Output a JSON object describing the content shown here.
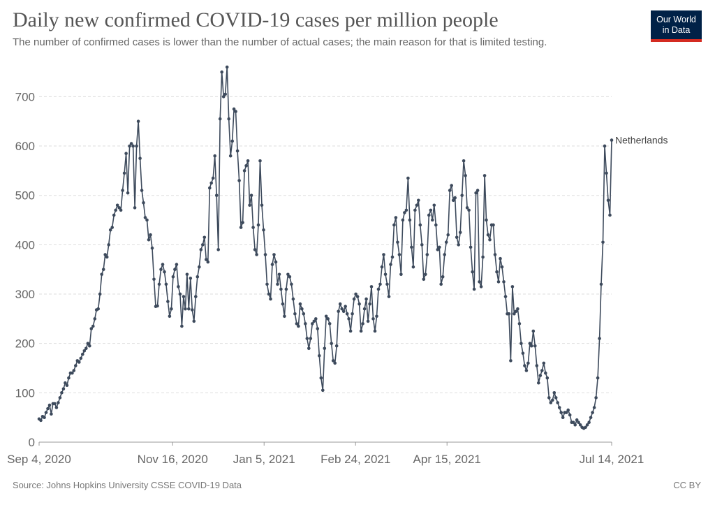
{
  "header": {
    "title": "Daily new confirmed COVID-19 cases per million people",
    "subtitle": "The number of confirmed cases is lower than the number of actual cases; the main reason for that is limited testing."
  },
  "logo": {
    "line1": "Our World",
    "line2": "in Data",
    "bg_color": "#002147",
    "accent_color": "#d42b21"
  },
  "footer": {
    "source": "Source: Johns Hopkins University CSSE COVID-19 Data",
    "license": "CC BY"
  },
  "colors": {
    "series": "#3d4a5c",
    "grid": "#dddddd",
    "axis_text": "#666666"
  },
  "chart_data": {
    "type": "line",
    "title": "Daily new confirmed COVID-19 cases per million people",
    "xlabel": "",
    "ylabel": "",
    "x_range": [
      "2020-09-04",
      "2021-07-14"
    ],
    "ylim": [
      0,
      760
    ],
    "yticks": [
      0,
      100,
      200,
      300,
      400,
      500,
      600,
      700
    ],
    "ytick_labels": [
      "0",
      "100",
      "200",
      "300",
      "400",
      "500",
      "600",
      "700"
    ],
    "xticks": [
      {
        "day": 0,
        "label": "Sep 4, 2020"
      },
      {
        "day": 73,
        "label": "Nov 16, 2020"
      },
      {
        "day": 123,
        "label": "Jan 5, 2021"
      },
      {
        "day": 173,
        "label": "Feb 24, 2021"
      },
      {
        "day": 223,
        "label": "Apr 15, 2021"
      },
      {
        "day": 313,
        "label": "Jul 14, 2021"
      }
    ],
    "grid": "horizontal dashed",
    "series": [
      {
        "name": "Netherlands",
        "start_date": "2020-09-04",
        "label_position": "end",
        "values": [
          47,
          44,
          52,
          50,
          60,
          68,
          75,
          57,
          78,
          78,
          70,
          80,
          90,
          100,
          108,
          120,
          115,
          130,
          140,
          140,
          145,
          155,
          165,
          162,
          170,
          178,
          185,
          190,
          200,
          195,
          230,
          235,
          250,
          268,
          270,
          300,
          340,
          350,
          380,
          375,
          400,
          430,
          435,
          460,
          470,
          480,
          475,
          470,
          510,
          545,
          585,
          505,
          600,
          605,
          600,
          475,
          600,
          650,
          575,
          510,
          485,
          455,
          450,
          410,
          420,
          393,
          330,
          275,
          276,
          320,
          350,
          360,
          345,
          320,
          285,
          255,
          270,
          335,
          350,
          360,
          315,
          300,
          235,
          295,
          270,
          340,
          270,
          332,
          268,
          245,
          295,
          335,
          355,
          390,
          400,
          415,
          370,
          365,
          515,
          525,
          535,
          580,
          500,
          390,
          655,
          750,
          700,
          705,
          760,
          655,
          580,
          610,
          675,
          670,
          590,
          530,
          435,
          445,
          550,
          560,
          570,
          480,
          500,
          435,
          390,
          380,
          440,
          570,
          480,
          430,
          380,
          320,
          300,
          290,
          360,
          380,
          365,
          320,
          340,
          310,
          280,
          255,
          310,
          340,
          335,
          320,
          290,
          260,
          240,
          235,
          280,
          270,
          260,
          240,
          210,
          190,
          210,
          240,
          245,
          250,
          230,
          175,
          130,
          105,
          190,
          255,
          250,
          240,
          200,
          165,
          160,
          195,
          265,
          280,
          270,
          265,
          275,
          260,
          250,
          225,
          260,
          290,
          300,
          295,
          280,
          225,
          240,
          270,
          290,
          245,
          280,
          315,
          250,
          225,
          255,
          310,
          320,
          355,
          380,
          340,
          320,
          295,
          360,
          375,
          440,
          455,
          405,
          380,
          340,
          450,
          465,
          470,
          535,
          450,
          395,
          355,
          470,
          480,
          490,
          440,
          400,
          330,
          340,
          380,
          460,
          470,
          450,
          480,
          440,
          390,
          395,
          320,
          335,
          380,
          405,
          420,
          510,
          520,
          490,
          495,
          415,
          400,
          425,
          500,
          570,
          540,
          475,
          470,
          395,
          345,
          310,
          505,
          510,
          325,
          315,
          375,
          540,
          450,
          420,
          410,
          440,
          440,
          380,
          345,
          325,
          372,
          355,
          325,
          295,
          260,
          260,
          165,
          315,
          260,
          265,
          270,
          240,
          200,
          180,
          155,
          145,
          160,
          200,
          195,
          225,
          195,
          155,
          120,
          135,
          145,
          160,
          140,
          130,
          90,
          80,
          85,
          100,
          90,
          80,
          70,
          60,
          50,
          60,
          60,
          65,
          55,
          40,
          40,
          35,
          45,
          40,
          35,
          30,
          28,
          30,
          35,
          40,
          50,
          60,
          70,
          90,
          130,
          210,
          320,
          405,
          600,
          545,
          490,
          460,
          612
        ]
      }
    ]
  }
}
